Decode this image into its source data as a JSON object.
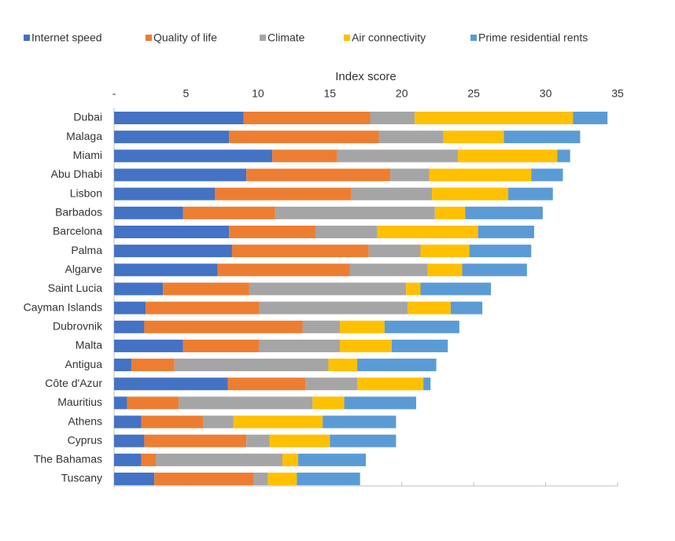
{
  "chart_data": {
    "type": "stacked-barh",
    "x_label": "Index score",
    "categories": [
      "Dubai",
      "Malaga",
      "Miami",
      "Abu Dhabi",
      "Lisbon",
      "Barbados",
      "Barcelona",
      "Palma",
      "Algarve",
      "Saint Lucia",
      "Cayman Islands",
      "Dubrovnik",
      "Malta",
      "Antigua",
      "Côte d'Azur",
      "Mauritius",
      "Athens",
      "Cyprus",
      "The Bahamas",
      "Tuscany"
    ],
    "series": [
      {
        "name": "Internet speed",
        "color": "#4472c4",
        "values": [
          9.0,
          8.0,
          11.0,
          9.2,
          7.0,
          4.8,
          8.0,
          8.2,
          7.2,
          3.4,
          2.2,
          2.1,
          4.8,
          1.2,
          7.9,
          0.9,
          1.9,
          2.1,
          1.9,
          2.8
        ]
      },
      {
        "name": "Quality of life",
        "color": "#ed7d31",
        "values": [
          8.8,
          10.4,
          4.5,
          10.0,
          9.5,
          6.4,
          6.0,
          9.5,
          9.2,
          6.0,
          7.9,
          11.0,
          5.3,
          3.0,
          5.4,
          3.6,
          4.3,
          7.1,
          1.0,
          6.9
        ]
      },
      {
        "name": "Climate",
        "color": "#a5a5a5",
        "values": [
          3.1,
          4.5,
          8.4,
          2.7,
          5.6,
          11.1,
          4.3,
          3.6,
          5.4,
          10.9,
          10.3,
          2.6,
          5.6,
          10.7,
          3.6,
          9.3,
          2.1,
          1.6,
          8.8,
          1.0
        ]
      },
      {
        "name": "Air connectivity",
        "color": "#ffc000",
        "values": [
          11.0,
          4.2,
          6.9,
          7.1,
          5.3,
          2.1,
          7.0,
          3.4,
          2.4,
          1.0,
          3.0,
          3.1,
          3.6,
          2.0,
          4.6,
          2.2,
          6.2,
          4.2,
          1.1,
          2.0
        ]
      },
      {
        "name": "Prime residential rents",
        "color": "#5b9bd5",
        "values": [
          2.4,
          5.3,
          0.9,
          2.2,
          3.1,
          5.4,
          3.9,
          4.3,
          4.5,
          4.9,
          2.2,
          5.2,
          3.9,
          5.5,
          0.5,
          5.0,
          5.1,
          4.6,
          4.7,
          4.4
        ]
      }
    ],
    "xlim": [
      0,
      35
    ],
    "xticks": [
      {
        "value": 0,
        "label": "-"
      },
      5,
      10,
      15,
      20,
      25,
      30,
      35
    ],
    "legend": "top"
  }
}
